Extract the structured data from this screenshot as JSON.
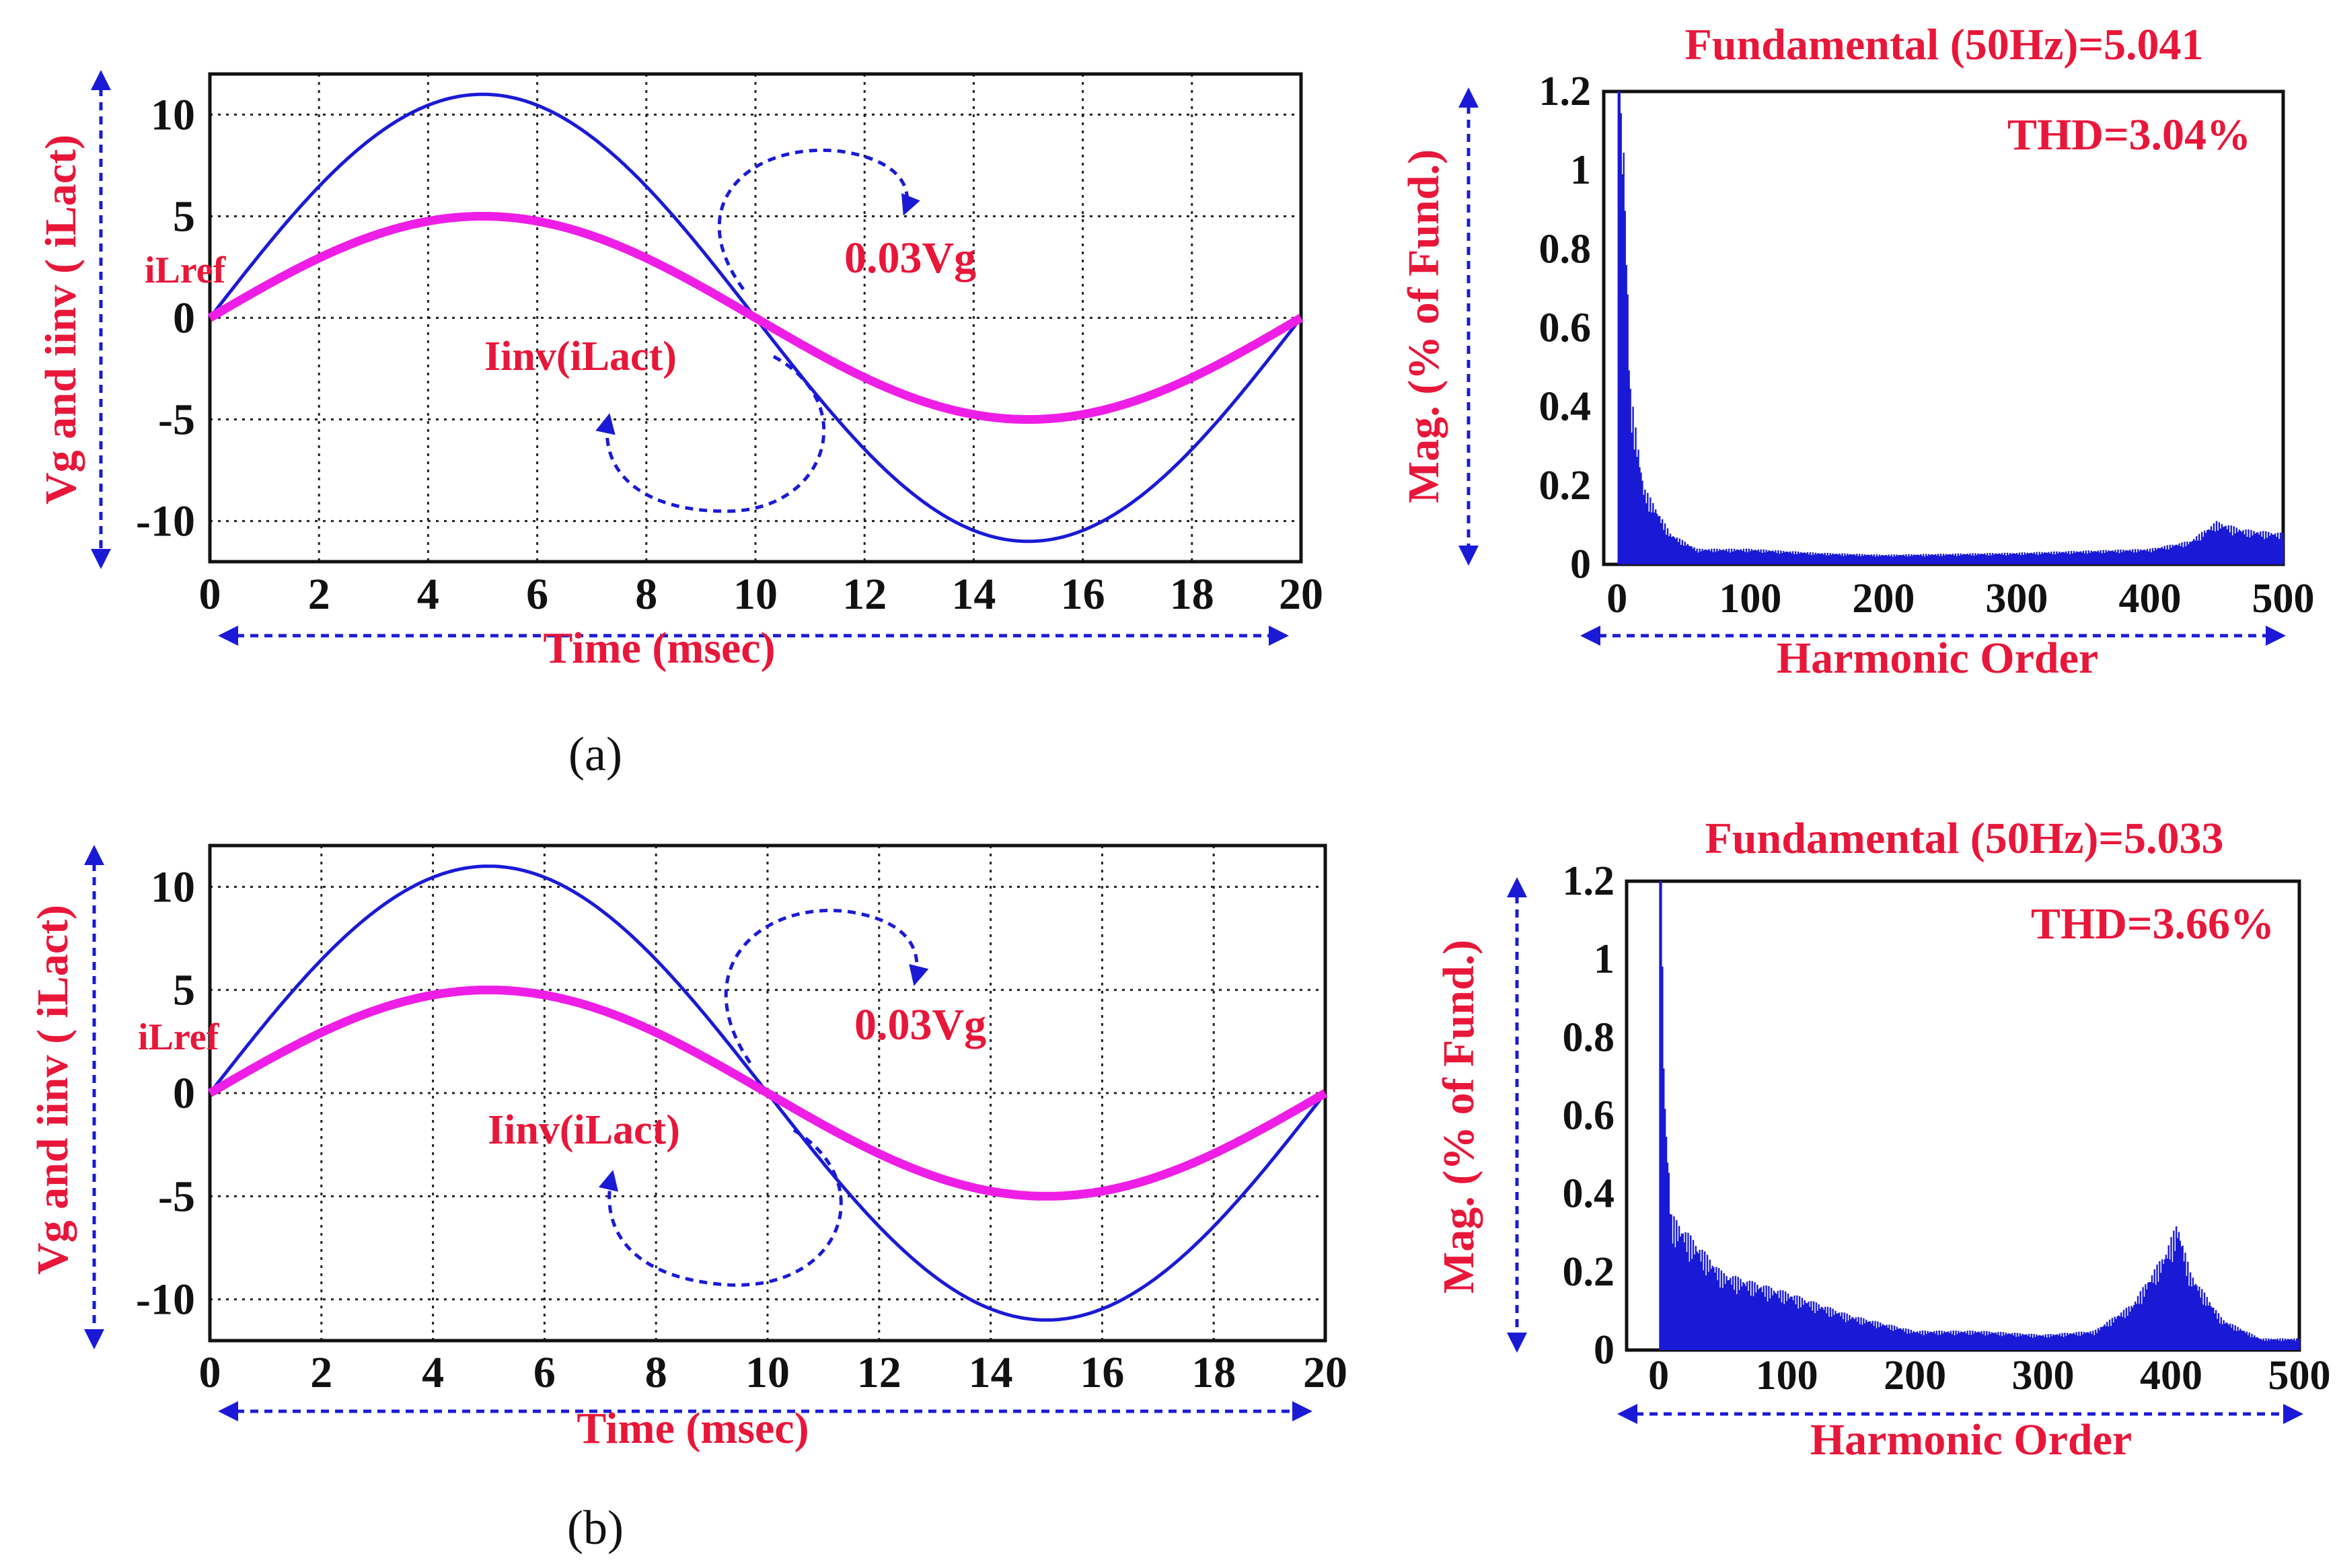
{
  "colors": {
    "red_text": "#e8173a",
    "blue": "#1a1ad6",
    "magenta": "#ee1ee6",
    "grid": "#222222"
  },
  "panels": [
    {
      "caption": "(a)",
      "left_chart": {
        "ylabel": "Vg and iinv ( iLact)",
        "xlabel": "Time (msec)",
        "x_ticks": [
          "0",
          "2",
          "4",
          "6",
          "8",
          "10",
          "12",
          "14",
          "16",
          "18",
          "20"
        ],
        "y_ticks": [
          "10",
          "5",
          "0",
          "-5",
          "-10"
        ],
        "ann_iLref": "iLref",
        "ann_iinv": "Iinv(iLact)",
        "ann_vg": "0.03Vg"
      },
      "right_chart": {
        "title": "Fundamental (50Hz)=5.041",
        "thd": "THD=3.04%",
        "ylabel": "Mag. (% of Fund.)",
        "xlabel": "Harmonic Order",
        "x_ticks": [
          "0",
          "100",
          "200",
          "300",
          "400",
          "500"
        ],
        "y_ticks": [
          "1.2",
          "1",
          "0.8",
          "0.6",
          "0.4",
          "0.2",
          "0"
        ]
      }
    },
    {
      "caption": "(b)",
      "left_chart": {
        "ylabel": "Vg and iinv ( iLact)",
        "xlabel": "Time (msec)",
        "x_ticks": [
          "0",
          "2",
          "4",
          "6",
          "8",
          "10",
          "12",
          "14",
          "16",
          "18",
          "20"
        ],
        "y_ticks": [
          "10",
          "5",
          "0",
          "-5",
          "-10"
        ],
        "ann_iLref": "iLref",
        "ann_iinv": "Iinv(iLact)",
        "ann_vg": "0.03Vg"
      },
      "right_chart": {
        "title": "Fundamental (50Hz)=5.033",
        "thd": "THD=3.66%",
        "ylabel": "Mag. (% of Fund.)",
        "xlabel": "Harmonic Order",
        "x_ticks": [
          "0",
          "100",
          "200",
          "300",
          "400",
          "500"
        ],
        "y_ticks": [
          "1.2",
          "1",
          "0.8",
          "0.6",
          "0.4",
          "0.2",
          "0"
        ]
      }
    }
  ],
  "chart_data": [
    {
      "type": "line",
      "panel": "a",
      "title": "",
      "xlabel": "Time (msec)",
      "ylabel": "Vg and iinv ( iLact)",
      "xlim": [
        0,
        20
      ],
      "ylim": [
        -12,
        12
      ],
      "grid": true,
      "series": [
        {
          "name": "0.03Vg",
          "amplitude": 11,
          "frequency_hz": 50
        },
        {
          "name": "iLref / Iinv(iLact)",
          "amplitude": 5,
          "frequency_hz": 50
        }
      ]
    },
    {
      "type": "bar",
      "panel": "a",
      "title": "Fundamental (50Hz)=5.041",
      "annotation": "THD=3.04%",
      "xlabel": "Harmonic Order",
      "ylabel": "Mag. (% of Fund.)",
      "xlim": [
        -10,
        500
      ],
      "ylim": [
        0,
        1.2
      ],
      "envelope_points": [
        [
          1,
          1.2
        ],
        [
          2,
          1.2
        ],
        [
          5,
          1.1
        ],
        [
          10,
          0.45
        ],
        [
          20,
          0.2
        ],
        [
          40,
          0.08
        ],
        [
          60,
          0.04
        ],
        [
          100,
          0.04
        ],
        [
          150,
          0.03
        ],
        [
          200,
          0.025
        ],
        [
          300,
          0.03
        ],
        [
          400,
          0.04
        ],
        [
          430,
          0.06
        ],
        [
          450,
          0.11
        ],
        [
          470,
          0.09
        ],
        [
          500,
          0.08
        ]
      ]
    },
    {
      "type": "line",
      "panel": "b",
      "title": "",
      "xlabel": "Time (msec)",
      "ylabel": "Vg and iinv ( iLact)",
      "xlim": [
        0,
        20
      ],
      "ylim": [
        -12,
        12
      ],
      "grid": true,
      "series": [
        {
          "name": "0.03Vg",
          "amplitude": 11,
          "frequency_hz": 50
        },
        {
          "name": "iLref / Iinv(iLact)",
          "amplitude": 5,
          "frequency_hz": 50
        }
      ]
    },
    {
      "type": "bar",
      "panel": "b",
      "title": "Fundamental (50Hz)=5.033",
      "annotation": "THD=3.66%",
      "xlabel": "Harmonic Order",
      "ylabel": "Mag. (% of Fund.)",
      "xlim": [
        -25,
        500
      ],
      "ylim": [
        0,
        1.2
      ],
      "envelope_points": [
        [
          1,
          1.2
        ],
        [
          3,
          1.0
        ],
        [
          5,
          0.65
        ],
        [
          10,
          0.35
        ],
        [
          50,
          0.2
        ],
        [
          100,
          0.15
        ],
        [
          150,
          0.09
        ],
        [
          200,
          0.05
        ],
        [
          250,
          0.05
        ],
        [
          300,
          0.04
        ],
        [
          340,
          0.05
        ],
        [
          370,
          0.12
        ],
        [
          395,
          0.25
        ],
        [
          405,
          0.33
        ],
        [
          415,
          0.2
        ],
        [
          440,
          0.08
        ],
        [
          470,
          0.03
        ],
        [
          500,
          0.03
        ]
      ]
    }
  ]
}
